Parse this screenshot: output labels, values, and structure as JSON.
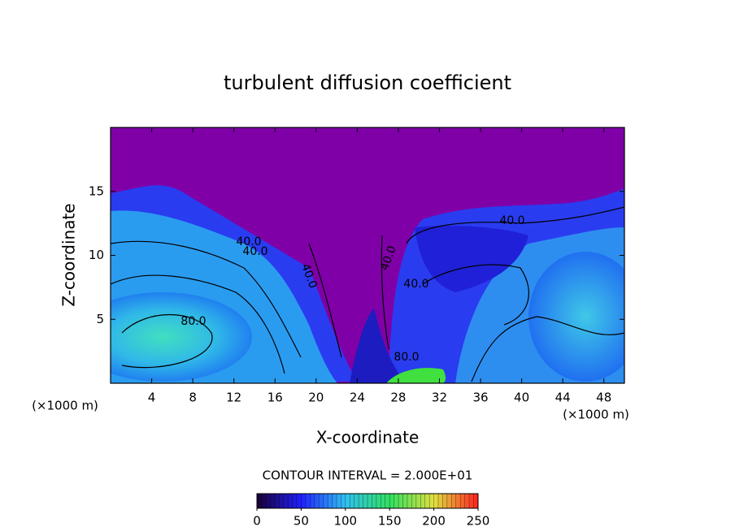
{
  "chart_data": {
    "type": "contour",
    "title": "turbulent diffusion coefficient",
    "xlabel": "X-coordinate",
    "ylabel": "Z-coordinate",
    "x_unit": "(×1000 m)",
    "y_unit": "(×1000 m)",
    "xlim": [
      0,
      50
    ],
    "ylim": [
      0,
      20
    ],
    "xticks": [
      4,
      8,
      12,
      16,
      20,
      24,
      28,
      32,
      36,
      40,
      44,
      48
    ],
    "yticks": [
      5,
      10,
      15
    ],
    "contour_interval_label": "CONTOUR INTERVAL = 2.000E+01",
    "contour_labels": [
      "40.0",
      "40.0",
      "40.0",
      "40.0",
      "40.0",
      "40.0",
      "80.0",
      "80.0"
    ],
    "colorbar": {
      "lim": [
        0,
        250
      ],
      "ticks": [
        0,
        50,
        100,
        150,
        200,
        250
      ],
      "colors": [
        "#1a0033",
        "#2020ff",
        "#30c0f0",
        "#30e060",
        "#e0e040",
        "#ff2020"
      ]
    }
  }
}
